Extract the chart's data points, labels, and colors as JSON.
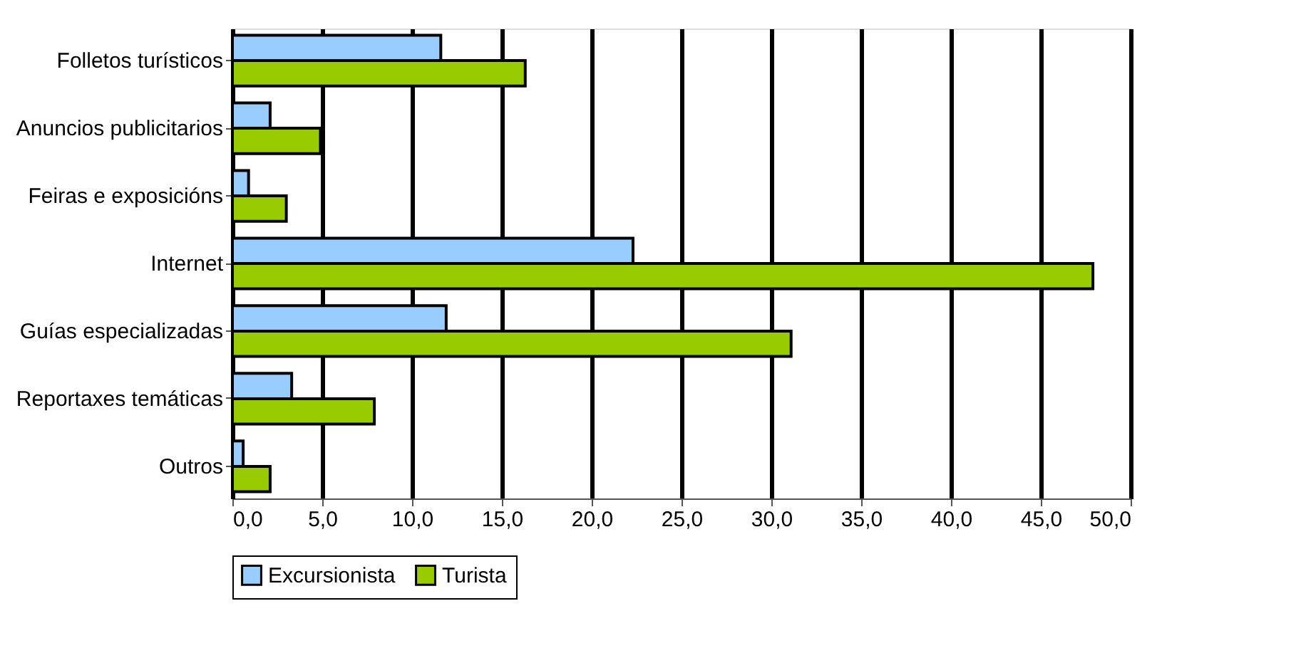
{
  "chart_data": {
    "type": "bar",
    "orientation": "horizontal",
    "categories": [
      "Folletos turísticos",
      "Anuncios publicitarios",
      "Feiras e exposicións",
      "Internet",
      "Guías especializadas",
      "Reportaxes temáticas",
      "Outros"
    ],
    "series": [
      {
        "name": "Excursionista",
        "color": "#99ccff",
        "values": [
          11.6,
          2.1,
          0.9,
          22.3,
          11.9,
          3.3,
          0.6
        ]
      },
      {
        "name": "Turista",
        "color": "#99cc00",
        "values": [
          16.3,
          4.9,
          3.0,
          47.9,
          31.1,
          7.9,
          2.1
        ]
      }
    ],
    "xlim": [
      0,
      50
    ],
    "xticks": [
      {
        "value": 0,
        "label": "0,0"
      },
      {
        "value": 5,
        "label": "5,0"
      },
      {
        "value": 10,
        "label": "10,0"
      },
      {
        "value": 15,
        "label": "15,0"
      },
      {
        "value": 20,
        "label": "20,0"
      },
      {
        "value": 25,
        "label": "25,0"
      },
      {
        "value": 30,
        "label": "30,0"
      },
      {
        "value": 35,
        "label": "35,0"
      },
      {
        "value": 40,
        "label": "40,0"
      },
      {
        "value": 45,
        "label": "45,0"
      },
      {
        "value": 50,
        "label": "50,0"
      }
    ],
    "grid": "x",
    "legend": "bottom"
  }
}
